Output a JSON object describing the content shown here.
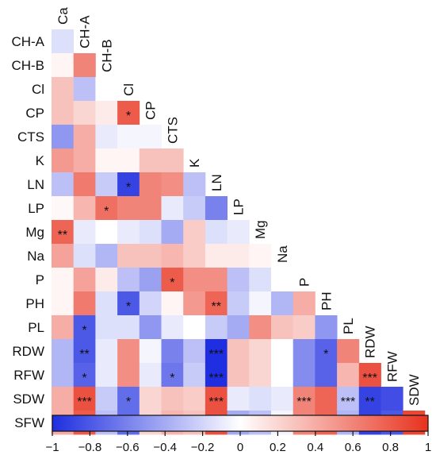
{
  "chart_data": {
    "type": "heatmap",
    "variables": [
      "Ca",
      "CH-A",
      "CH-B",
      "Cl",
      "CP",
      "CTS",
      "K",
      "LN",
      "LP",
      "Mg",
      "Na",
      "P",
      "PH",
      "PL",
      "RDW",
      "RFW",
      "SDW",
      "SFW"
    ],
    "rows": [
      "CH-A",
      "CH-B",
      "Cl",
      "CP",
      "CTS",
      "K",
      "LN",
      "LP",
      "Mg",
      "Na",
      "P",
      "PH",
      "PL",
      "RDW",
      "RFW",
      "SDW",
      "SFW"
    ],
    "columns": [
      "Ca",
      "CH-A",
      "CH-B",
      "Cl",
      "CP",
      "CTS",
      "K",
      "LN",
      "LP",
      "Mg",
      "Na",
      "P",
      "PH",
      "PL",
      "RDW",
      "RFW",
      "SDW"
    ],
    "values": [
      [
        -0.15
      ],
      [
        0.05,
        0.6
      ],
      [
        0.3,
        -0.3,
        0.0
      ],
      [
        0.3,
        0.2,
        0.1,
        0.8
      ],
      [
        -0.5,
        0.4,
        -0.1,
        -0.05,
        -0.05
      ],
      [
        0.5,
        0.4,
        0.05,
        0.05,
        0.3,
        0.3
      ],
      [
        -0.3,
        0.65,
        -0.25,
        -0.9,
        0.6,
        0.55,
        -0.3
      ],
      [
        0.03,
        0.35,
        0.7,
        0.6,
        0.6,
        -0.1,
        -0.25,
        -0.6
      ],
      [
        0.75,
        -0.1,
        0.0,
        -0.1,
        -0.15,
        -0.4,
        0.25,
        -0.15,
        -0.1
      ],
      [
        0.45,
        -0.15,
        -0.35,
        0.3,
        0.3,
        0.35,
        0.25,
        0.1,
        0.1,
        0.05
      ],
      [
        0.05,
        0.45,
        0.1,
        -0.3,
        -0.45,
        0.8,
        0.55,
        0.55,
        -0.3,
        -0.15,
        0.0
      ],
      [
        0.05,
        0.65,
        -0.15,
        -0.8,
        -0.2,
        0.05,
        0.5,
        0.75,
        -0.25,
        -0.05,
        -0.35,
        0.4
      ],
      [
        0.4,
        -0.8,
        -0.15,
        -0.15,
        -0.5,
        -0.1,
        0.0,
        -0.25,
        -0.4,
        0.55,
        0.3,
        0.25,
        -0.5
      ],
      [
        -0.35,
        -0.8,
        -0.1,
        0.55,
        -0.05,
        -0.6,
        -0.3,
        -1.0,
        0.3,
        0.2,
        0.0,
        -0.55,
        -0.75,
        0.6
      ],
      [
        -0.35,
        -0.75,
        -0.1,
        0.55,
        -0.1,
        -0.65,
        -0.25,
        -1.0,
        0.3,
        0.2,
        0.0,
        -0.55,
        -0.75,
        0.35,
        0.85
      ],
      [
        0.4,
        0.85,
        -0.25,
        -0.7,
        0.2,
        0.3,
        0.25,
        0.85,
        -0.1,
        -0.15,
        -0.1,
        0.6,
        0.75,
        -0.3,
        -0.9,
        -0.85
      ],
      [
        0.4,
        0.8,
        -0.3,
        -0.7,
        0.2,
        0.35,
        0.3,
        0.85,
        -0.4,
        -0.3,
        -0.05,
        0.6,
        0.75,
        -0.35,
        -0.9,
        -0.8,
        0.9
      ]
    ],
    "significance": [
      [
        ""
      ],
      [
        "",
        ""
      ],
      [
        "",
        "",
        ""
      ],
      [
        "",
        "",
        "",
        "*"
      ],
      [
        "",
        "",
        "",
        "",
        ""
      ],
      [
        "",
        "",
        "",
        "",
        "",
        ""
      ],
      [
        "",
        "",
        "",
        "*",
        "",
        "",
        ""
      ],
      [
        "",
        "",
        "*",
        "",
        "",
        "",
        "",
        ""
      ],
      [
        "**",
        "",
        "",
        "",
        "",
        "",
        "",
        "",
        ""
      ],
      [
        "",
        "",
        "",
        "",
        "",
        "",
        "",
        "",
        "",
        ""
      ],
      [
        "",
        "",
        "",
        "",
        "",
        "*",
        "",
        "",
        "",
        "",
        ""
      ],
      [
        "",
        "",
        "",
        "*",
        "",
        "",
        "",
        "**",
        "",
        "",
        "",
        ""
      ],
      [
        "",
        "*",
        "",
        "",
        "",
        "",
        "",
        "",
        "",
        "",
        "",
        "",
        ""
      ],
      [
        "",
        "**",
        "",
        "",
        "",
        "",
        "",
        "***",
        "",
        "",
        "",
        "",
        "*",
        ""
      ],
      [
        "",
        "*",
        "",
        "",
        "",
        "*",
        "",
        "***",
        "",
        "",
        "",
        "",
        "",
        "",
        "***"
      ],
      [
        "",
        "***",
        "",
        "*",
        "",
        "",
        "",
        "***",
        "",
        "",
        "",
        "***",
        "",
        "***",
        "**",
        ""
      ],
      [
        "",
        "*",
        "",
        "*",
        "",
        "",
        "",
        "***",
        "",
        "",
        "",
        "***",
        "",
        "***",
        "*",
        "***"
      ]
    ],
    "colorbar": {
      "min": -1,
      "max": 1,
      "ticks": [
        -1,
        -0.8,
        -0.6,
        -0.4,
        -0.2,
        0,
        0.2,
        0.4,
        0.6,
        0.8,
        1
      ],
      "tick_labels": [
        "−1",
        "−0.8",
        "−0.6",
        "−0.4",
        "−0.2",
        "0",
        "0.2",
        "0.4",
        "0.6",
        "0.8",
        "1"
      ],
      "colors": {
        "negative": "#1f2ee0",
        "zero": "#ffffff",
        "positive": "#e8321e"
      }
    },
    "title": "",
    "xlabel": "",
    "ylabel": "",
    "grid": false,
    "legend": "colorbar bottom"
  }
}
